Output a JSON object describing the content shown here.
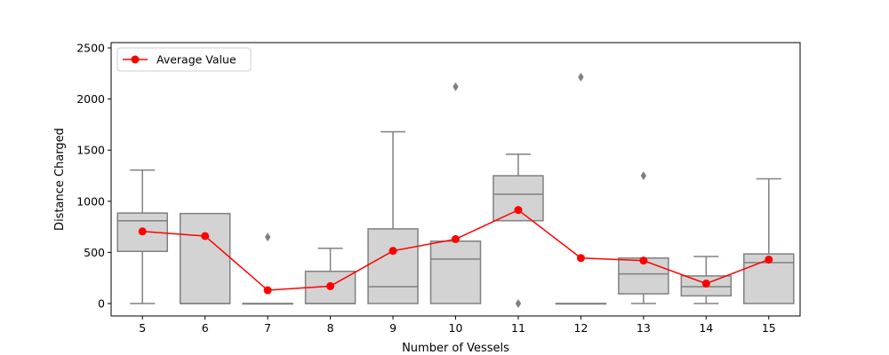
{
  "chart_data": {
    "type": "box",
    "xlabel": "Number of Vessels",
    "ylabel": "Distance Charged",
    "categories": [
      "5",
      "6",
      "7",
      "8",
      "9",
      "10",
      "11",
      "12",
      "13",
      "14",
      "15"
    ],
    "yticks": [
      "0",
      "500",
      "1000",
      "1500",
      "2000",
      "2500"
    ],
    "ylim": [
      -120,
      2560
    ],
    "boxes": [
      {
        "category": "5",
        "whisker_low": 0,
        "q1": 510,
        "median": 810,
        "q3": 885,
        "whisker_high": 1305,
        "outliers": []
      },
      {
        "category": "6",
        "whisker_low": 0,
        "q1": 0,
        "median": 0,
        "q3": 880,
        "whisker_high": 880,
        "outliers": []
      },
      {
        "category": "7",
        "whisker_low": 0,
        "q1": 0,
        "median": 0,
        "q3": 0,
        "whisker_high": 0,
        "outliers": [
          650
        ]
      },
      {
        "category": "8",
        "whisker_low": 0,
        "q1": 0,
        "median": 0,
        "q3": 315,
        "whisker_high": 540,
        "outliers": []
      },
      {
        "category": "9",
        "whisker_low": 0,
        "q1": 0,
        "median": 165,
        "q3": 730,
        "whisker_high": 1680,
        "outliers": []
      },
      {
        "category": "10",
        "whisker_low": 0,
        "q1": 0,
        "median": 435,
        "q3": 610,
        "whisker_high": 610,
        "outliers": [
          2120
        ]
      },
      {
        "category": "11",
        "whisker_low": 810,
        "q1": 810,
        "median": 1070,
        "q3": 1250,
        "whisker_high": 1460,
        "outliers": [
          0
        ]
      },
      {
        "category": "12",
        "whisker_low": 0,
        "q1": 0,
        "median": 0,
        "q3": 0,
        "whisker_high": 0,
        "outliers": [
          2215
        ]
      },
      {
        "category": "13",
        "whisker_low": 0,
        "q1": 95,
        "median": 290,
        "q3": 445,
        "whisker_high": 445,
        "outliers": [
          1250
        ]
      },
      {
        "category": "14",
        "whisker_low": 0,
        "q1": 75,
        "median": 165,
        "q3": 270,
        "whisker_high": 460,
        "outliers": []
      },
      {
        "category": "15",
        "whisker_low": 0,
        "q1": 0,
        "median": 400,
        "q3": 485,
        "whisker_high": 1220,
        "outliers": []
      }
    ],
    "series": [
      {
        "name": "Average Value",
        "values": [
          705,
          660,
          130,
          170,
          515,
          630,
          915,
          445,
          420,
          195,
          430
        ]
      }
    ],
    "legend_position": "top-left",
    "grid": false,
    "colors": {
      "box_fill": "#d3d3d3",
      "box_edge": "#808080",
      "average_line": "#ff0000"
    }
  }
}
